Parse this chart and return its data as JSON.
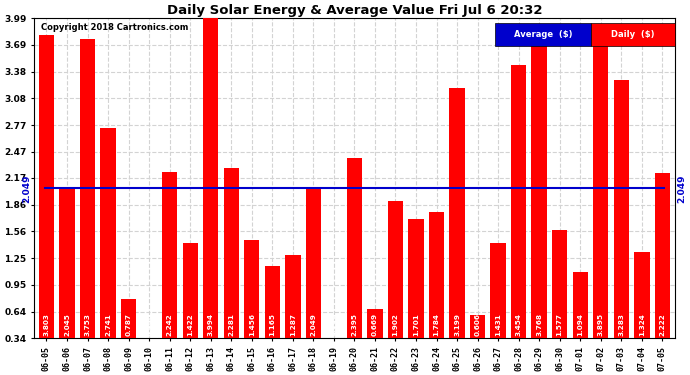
{
  "title": "Daily Solar Energy & Average Value Fri Jul 6 20:32",
  "copyright": "Copyright 2018 Cartronics.com",
  "average_value": 2.049,
  "average_label": "2.049",
  "categories": [
    "06-05",
    "06-06",
    "06-07",
    "06-08",
    "06-09",
    "06-10",
    "06-11",
    "06-12",
    "06-13",
    "06-14",
    "06-15",
    "06-16",
    "06-17",
    "06-18",
    "06-19",
    "06-20",
    "06-21",
    "06-22",
    "06-23",
    "06-24",
    "06-25",
    "06-26",
    "06-27",
    "06-28",
    "06-29",
    "06-30",
    "07-01",
    "07-02",
    "07-03",
    "07-04",
    "07-05"
  ],
  "values": [
    3.803,
    2.045,
    3.753,
    2.741,
    0.787,
    0.0,
    2.242,
    1.422,
    3.994,
    2.281,
    1.456,
    1.165,
    1.287,
    2.049,
    0.0,
    2.395,
    0.669,
    1.902,
    1.701,
    1.784,
    3.199,
    0.606,
    1.431,
    3.454,
    3.768,
    1.577,
    1.094,
    3.895,
    3.283,
    1.324,
    2.222
  ],
  "bar_color": "#ff0000",
  "line_color": "#0000cc",
  "bg_color": "#ffffff",
  "ylim_min": 0.34,
  "ylim_max": 3.99,
  "yticks": [
    0.34,
    0.64,
    0.95,
    1.25,
    1.56,
    1.86,
    2.17,
    2.47,
    2.77,
    3.08,
    3.38,
    3.69,
    3.99
  ],
  "legend_avg_bg": "#0000cc",
  "legend_daily_bg": "#ff0000",
  "legend_avg_text": "Average  ($)",
  "legend_daily_text": "Daily  ($)"
}
